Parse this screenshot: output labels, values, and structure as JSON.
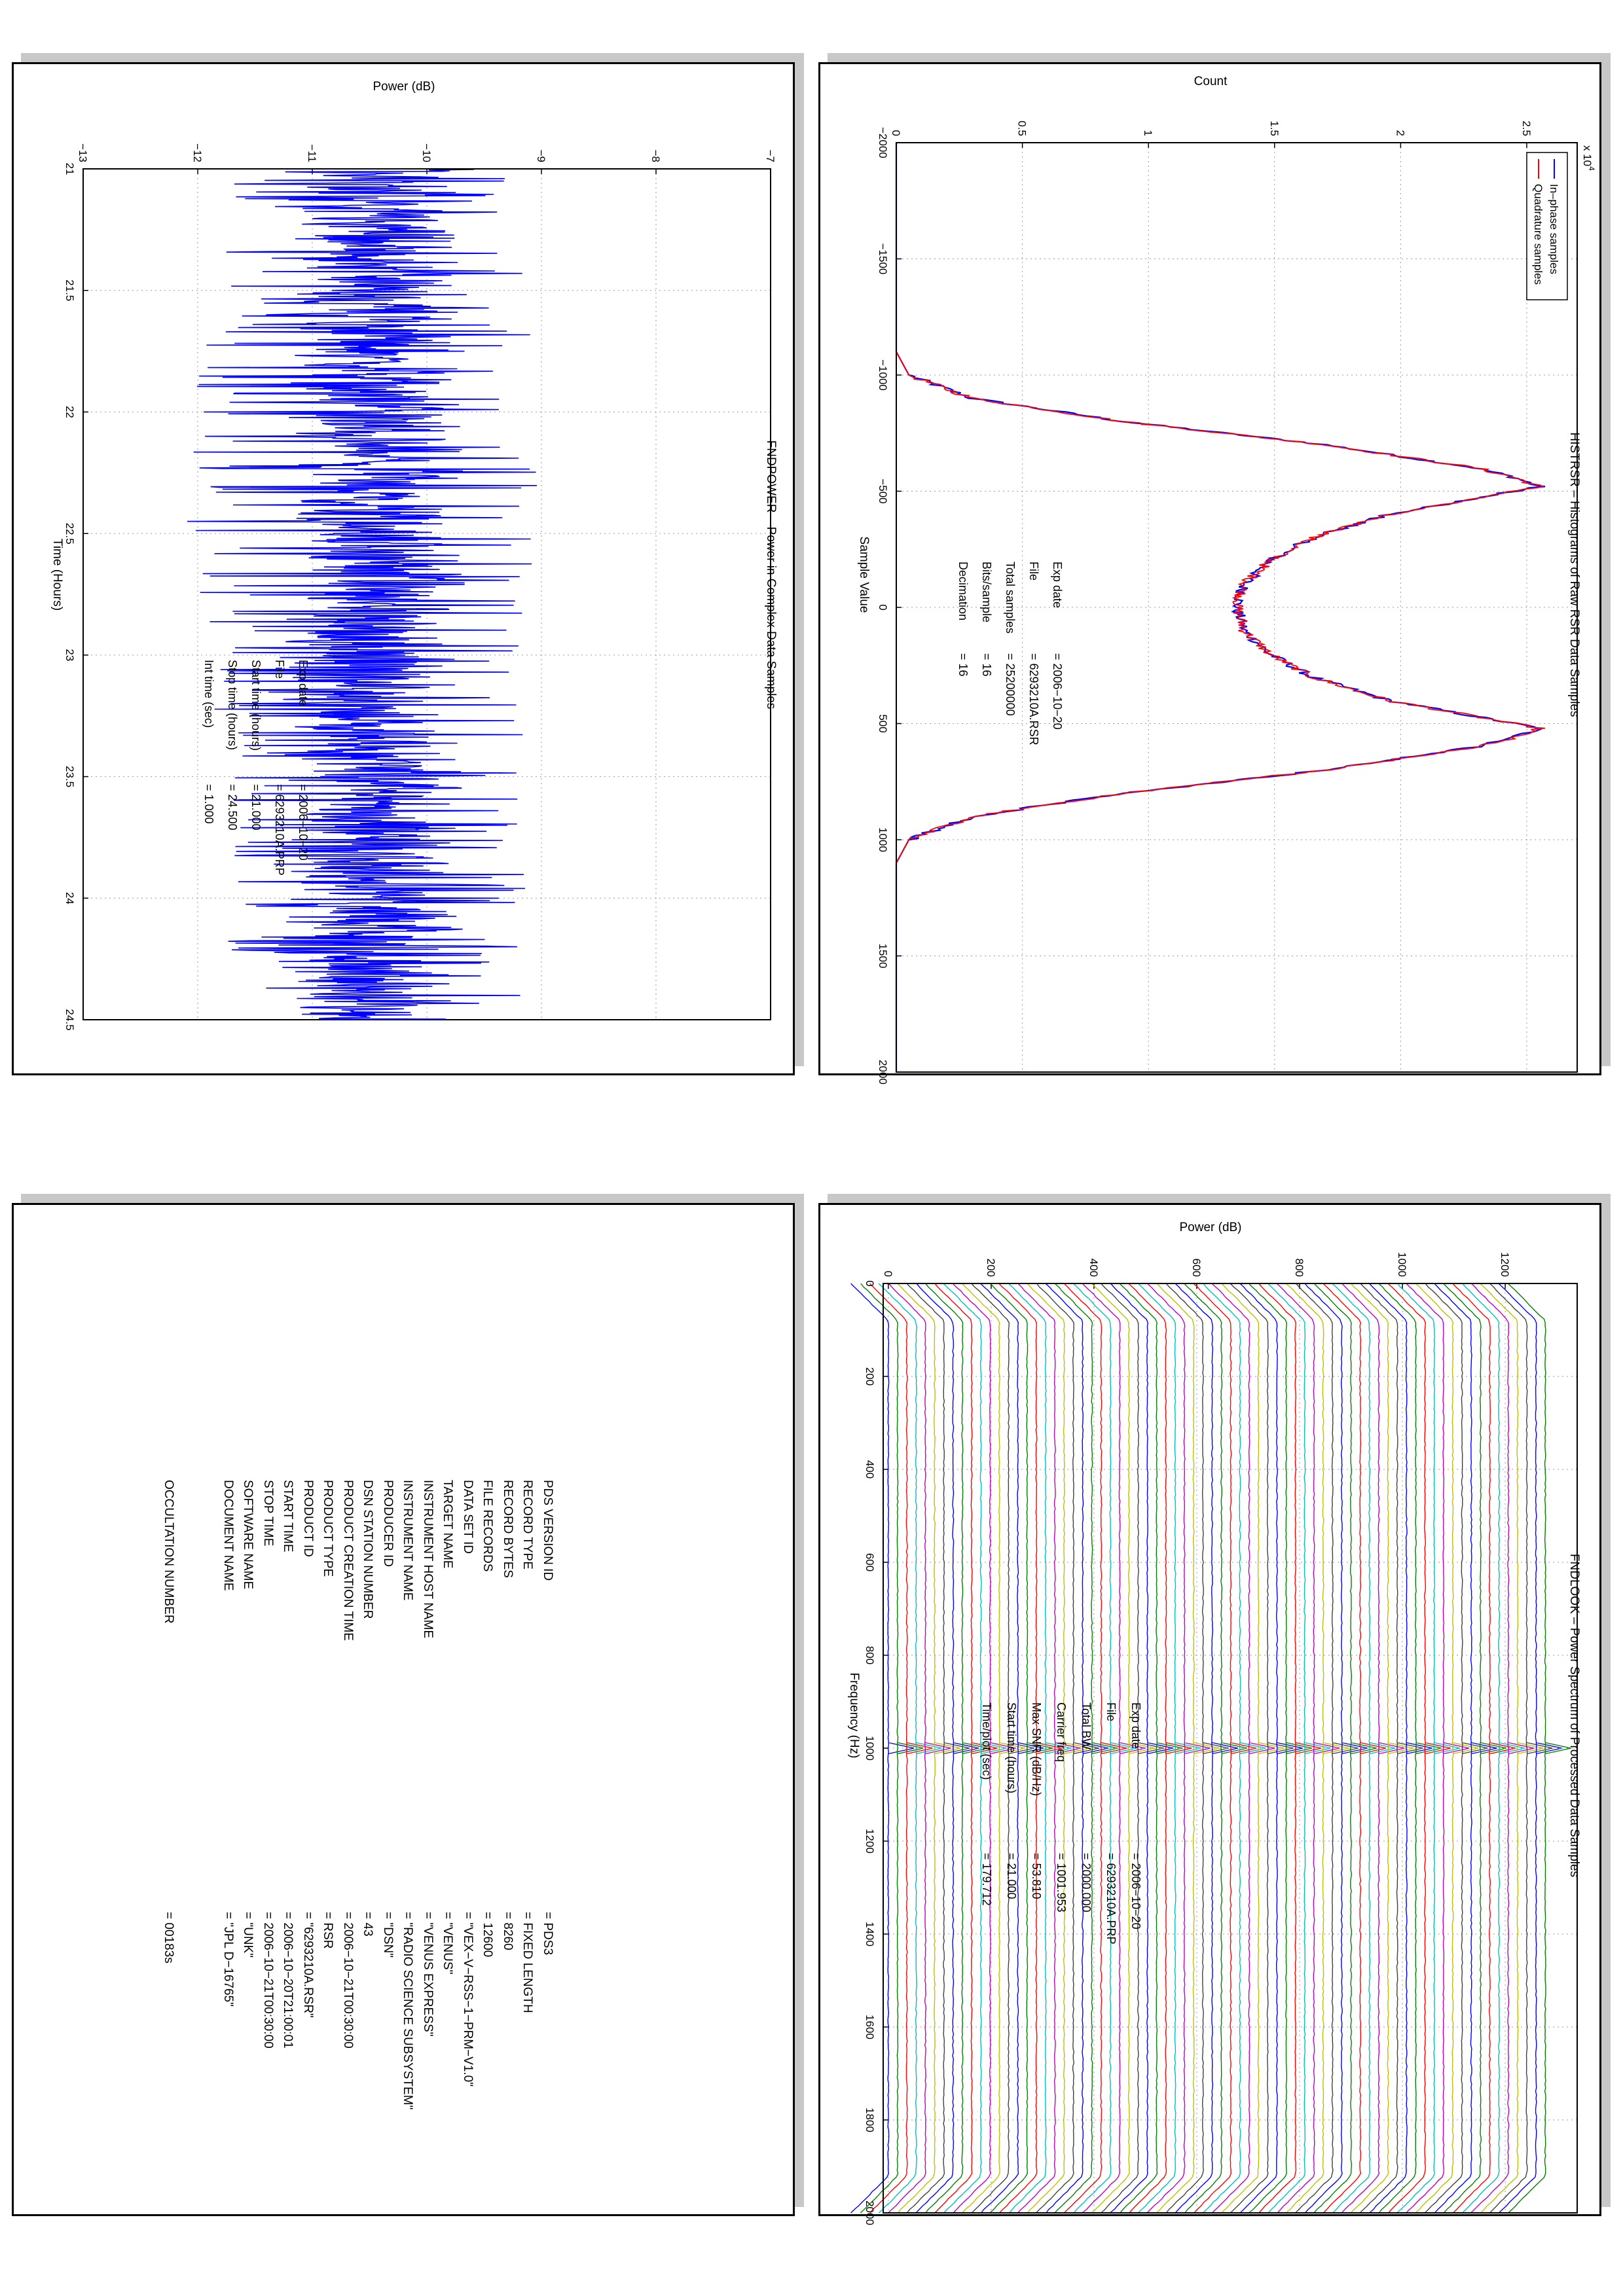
{
  "colors": {
    "inphase": "#0000ff",
    "quadrature": "#ff0000",
    "power": "#0000ff",
    "spectrum_palette": [
      "#0000ff",
      "#008000",
      "#ff0000",
      "#00bfbf",
      "#bf00bf",
      "#bfbf00",
      "#404040"
    ]
  },
  "chart_data": [
    {
      "type": "line",
      "title": "HISTRSR – Histograms of Raw RSR Data Samples",
      "xlabel": "Sample Value",
      "ylabel": "Count",
      "y_multiplier_label": "x 10",
      "y_multiplier_exp": "4",
      "xlim": [
        -2000,
        2000
      ],
      "ylim": [
        0,
        2.7
      ],
      "xticks": [
        -2000,
        -1500,
        -1000,
        -500,
        0,
        500,
        1000,
        1500,
        2000
      ],
      "yticks": [
        0,
        0.5,
        1,
        1.5,
        2,
        2.5
      ],
      "grid": true,
      "legend_position": "top-left",
      "series": [
        {
          "name": "In–phase samples",
          "x": [
            -2000,
            -1100,
            -1000,
            -900,
            -800,
            -700,
            -600,
            -560,
            -520,
            -480,
            -400,
            -300,
            -200,
            -100,
            0,
            100,
            200,
            300,
            400,
            480,
            520,
            560,
            600,
            700,
            800,
            900,
            1000,
            1100,
            2000
          ],
          "values": [
            0,
            0,
            0.05,
            0.3,
            0.9,
            1.7,
            2.3,
            2.45,
            2.55,
            2.35,
            1.95,
            1.65,
            1.48,
            1.38,
            1.35,
            1.38,
            1.48,
            1.65,
            1.95,
            2.35,
            2.55,
            2.45,
            2.3,
            1.7,
            0.9,
            0.3,
            0.05,
            0,
            0
          ]
        },
        {
          "name": "Quadrature samples",
          "x": [
            -2000,
            -1100,
            -1000,
            -900,
            -800,
            -700,
            -600,
            -560,
            -520,
            -480,
            -400,
            -300,
            -200,
            -100,
            0,
            100,
            200,
            300,
            400,
            480,
            520,
            560,
            600,
            700,
            800,
            900,
            1000,
            1100,
            2000
          ],
          "values": [
            0,
            0,
            0.05,
            0.3,
            0.9,
            1.7,
            2.3,
            2.45,
            2.55,
            2.35,
            1.95,
            1.65,
            1.48,
            1.38,
            1.35,
            1.38,
            1.48,
            1.65,
            1.95,
            2.35,
            2.55,
            2.45,
            2.3,
            1.7,
            0.9,
            0.3,
            0.05,
            0,
            0
          ]
        }
      ],
      "annotations": [
        {
          "label": "Exp date",
          "value": "=  2006−10−20"
        },
        {
          "label": "File",
          "value": "= 6293210A.RSR"
        },
        {
          "label": "Total samples",
          "value": "=   25200000"
        },
        {
          "label": "Bits/sample",
          "value": "=        16"
        },
        {
          "label": "Decimation",
          "value": "=        16"
        }
      ]
    },
    {
      "type": "line",
      "title": "FNDPOWER – Power in Complex Data Samples",
      "xlabel": "Time (Hours)",
      "ylabel": "Power (dB)",
      "xlim": [
        21,
        24.5
      ],
      "ylim": [
        -13,
        -7
      ],
      "xticks": [
        21,
        21.5,
        22,
        22.5,
        23,
        23.5,
        24,
        24.5
      ],
      "yticks": [
        -13,
        -12,
        -11,
        -10,
        -9,
        -8,
        -7
      ],
      "grid": true,
      "series": [
        {
          "name": "",
          "x": [
            21,
            21.5,
            22,
            22.5,
            23,
            23.5,
            24,
            24.5
          ],
          "mean": [
            -10.4,
            -10.4,
            -10.5,
            -10.4,
            -10.5,
            -10.4,
            -10.5,
            -10.5
          ],
          "spread_low": [
            -11.7,
            -11.8,
            -12.1,
            -12.1,
            -11.9,
            -11.8,
            -11.8,
            -11.7
          ],
          "spread_high": [
            -9.2,
            -9.1,
            -9.0,
            -9.0,
            -9.2,
            -9.1,
            -9.1,
            -9.2
          ]
        }
      ],
      "annotations": [
        {
          "label": "Exp date",
          "value": "= 2006−10−20"
        },
        {
          "label": "File",
          "value": "= 6293210A.PRP"
        },
        {
          "label": "Start time (hours)",
          "value": "= 21.000"
        },
        {
          "label": "Stop time (hours)",
          "value": "=  24.500"
        },
        {
          "label": "Int time (sec)",
          "value": "=      1.000"
        }
      ]
    },
    {
      "type": "line",
      "title": "FNDLOOK – Power Spectrum of Processed Data Samples",
      "xlabel": "Frequency (Hz)",
      "ylabel": "Power (dB)",
      "xlim": [
        0,
        2000
      ],
      "ylim": [
        -10,
        1340
      ],
      "xticks": [
        0,
        200,
        400,
        600,
        800,
        1000,
        1200,
        1400,
        1600,
        1800,
        2000
      ],
      "yticks": [
        0,
        200,
        400,
        600,
        800,
        1000,
        1200
      ],
      "grid": true,
      "stacked_spectra": {
        "count": 72,
        "offset_step": 18,
        "peak_frequency": 1000,
        "baseline_start": 0
      },
      "annotations": [
        {
          "label": "Exp date",
          "value": "= 2006−10−20"
        },
        {
          "label": "File",
          "value": "= 6293210A.PRP"
        },
        {
          "label": "Total BW",
          "value": "=    2000.000"
        },
        {
          "label": "Carrier freq",
          "value": "=    1001.953"
        },
        {
          "label": "Max SNR (dB/Hz)",
          "value": "=     53.810"
        },
        {
          "label": "Start time (hours)",
          "value": "=   21.000"
        },
        {
          "label": "Time/plot (sec)",
          "value": "=    179.712"
        }
      ]
    }
  ],
  "label": {
    "fields": [
      {
        "name": "PDS VERSION ID",
        "value": "= PDS3"
      },
      {
        "name": "RECORD TYPE",
        "value": "= FIXED LENGTH"
      },
      {
        "name": "RECORD BYTES",
        "value": "= 8260"
      },
      {
        "name": "FILE RECORDS",
        "value": "= 12600"
      },
      {
        "name": "DATA SET ID",
        "value": "= \"VEX−V−RSS−1−PRM−V1.0\""
      },
      {
        "name": "TARGET NAME",
        "value": "= \"VENUS\""
      },
      {
        "name": "INSTRUMENT HOST NAME",
        "value": "= \"VENUS EXPRESS\""
      },
      {
        "name": "INSTRUMENT NAME",
        "value": "= \"RADIO SCIENCE SUBSYSTEM\""
      },
      {
        "name": "PRODUCER ID",
        "value": "= \"DSN\""
      },
      {
        "name": "DSN STATION NUMBER",
        "value": "= 43"
      },
      {
        "name": "PRODUCT CREATION TIME",
        "value": "= 2006−10−21T00:30:00"
      },
      {
        "name": "PRODUCT TYPE",
        "value": "= RSR"
      },
      {
        "name": "PRODUCT ID",
        "value": "= \"6293210A.RSR\""
      },
      {
        "name": "START TIME",
        "value": "= 2006−10−20T21:00:01"
      },
      {
        "name": "STOP TIME",
        "value": "= 2006−10−21T00:30:00"
      },
      {
        "name": "SOFTWARE NAME",
        "value": "= \"UNK\""
      },
      {
        "name": "DOCUMENT NAME",
        "value": "= \"JPL D−16765\""
      }
    ],
    "extra": {
      "name": "OCCULTATION NUMBER",
      "value": "= 00183s"
    }
  }
}
